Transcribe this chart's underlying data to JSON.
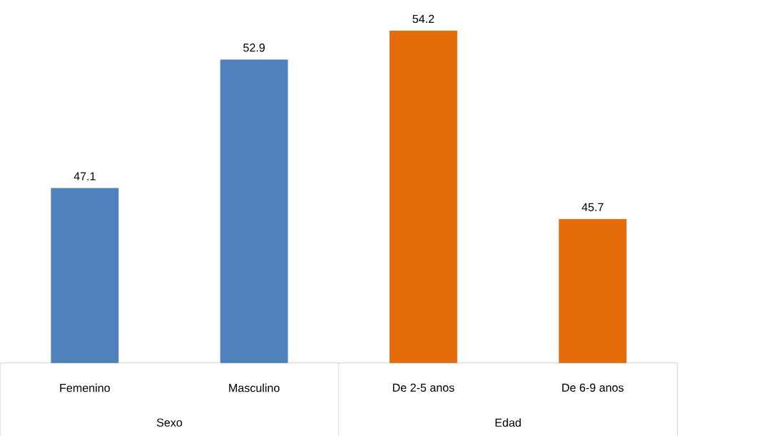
{
  "chart_data": {
    "type": "bar",
    "categories": [
      "Femenino",
      "Masculino",
      "De 2-5 anos",
      "De 6-9 anos"
    ],
    "values": [
      47.1,
      52.9,
      54.2,
      45.7
    ],
    "colors": [
      "#4f81bd",
      "#4f81bd",
      "#e46c0a",
      "#e46c0a"
    ],
    "ylim": [
      39.2,
      54.2
    ],
    "data_labels": true,
    "tick_labels": "x",
    "annotations": [
      "Sexo",
      "Edad"
    ]
  }
}
